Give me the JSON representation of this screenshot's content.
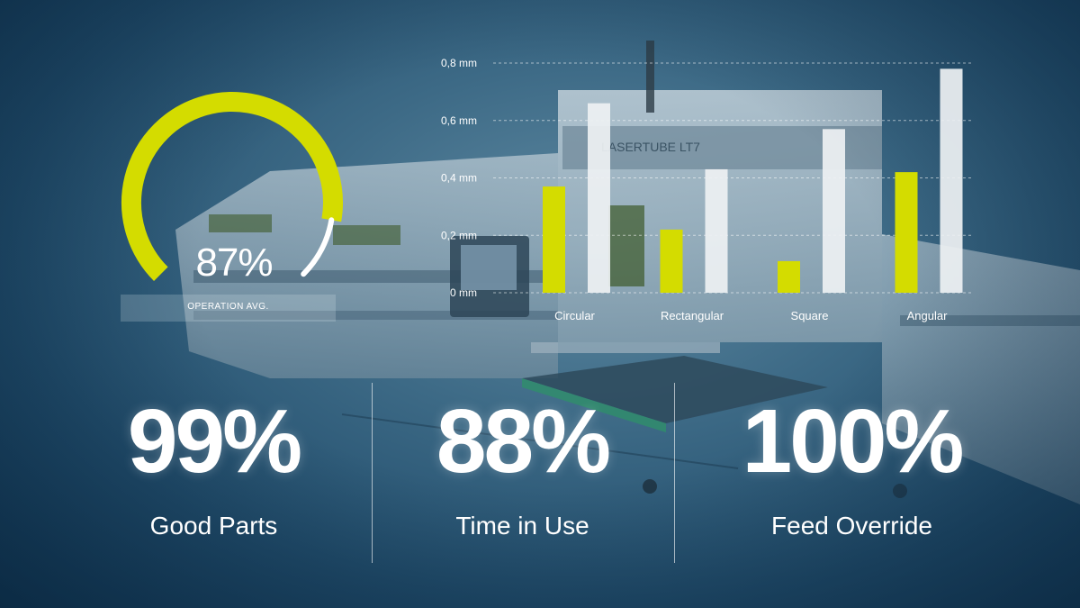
{
  "gauge": {
    "value_text": "87%",
    "fraction": 0.87,
    "label": "OPERATION AVG.",
    "arc_color": "#d4dc00",
    "remainder_color": "#ffffff"
  },
  "machine": {
    "brand_label": "LASERTUBE LT7"
  },
  "chart_data": {
    "type": "bar",
    "categories": [
      "Circular",
      "Rectangular",
      "Square",
      "Angular"
    ],
    "series": [
      {
        "values": [
          0.37,
          0.22,
          0.11,
          0.42
        ],
        "color": "#d4dc00"
      },
      {
        "values": [
          0.66,
          0.43,
          0.57,
          0.78
        ],
        "color": "#eef1f3"
      }
    ],
    "y_ticks": [
      "0 mm",
      "0,2 mm",
      "0,4 mm",
      "0,6 mm",
      "0,8 mm"
    ],
    "y_tick_values": [
      0,
      0.2,
      0.4,
      0.6,
      0.8
    ],
    "ylim": [
      0,
      0.8
    ],
    "grid": true,
    "title": "",
    "xlabel": "",
    "ylabel": ""
  },
  "kpis": [
    {
      "value": "99%",
      "label": "Good Parts"
    },
    {
      "value": "88%",
      "label": "Time in Use"
    },
    {
      "value": "100%",
      "label": "Feed Override"
    }
  ]
}
